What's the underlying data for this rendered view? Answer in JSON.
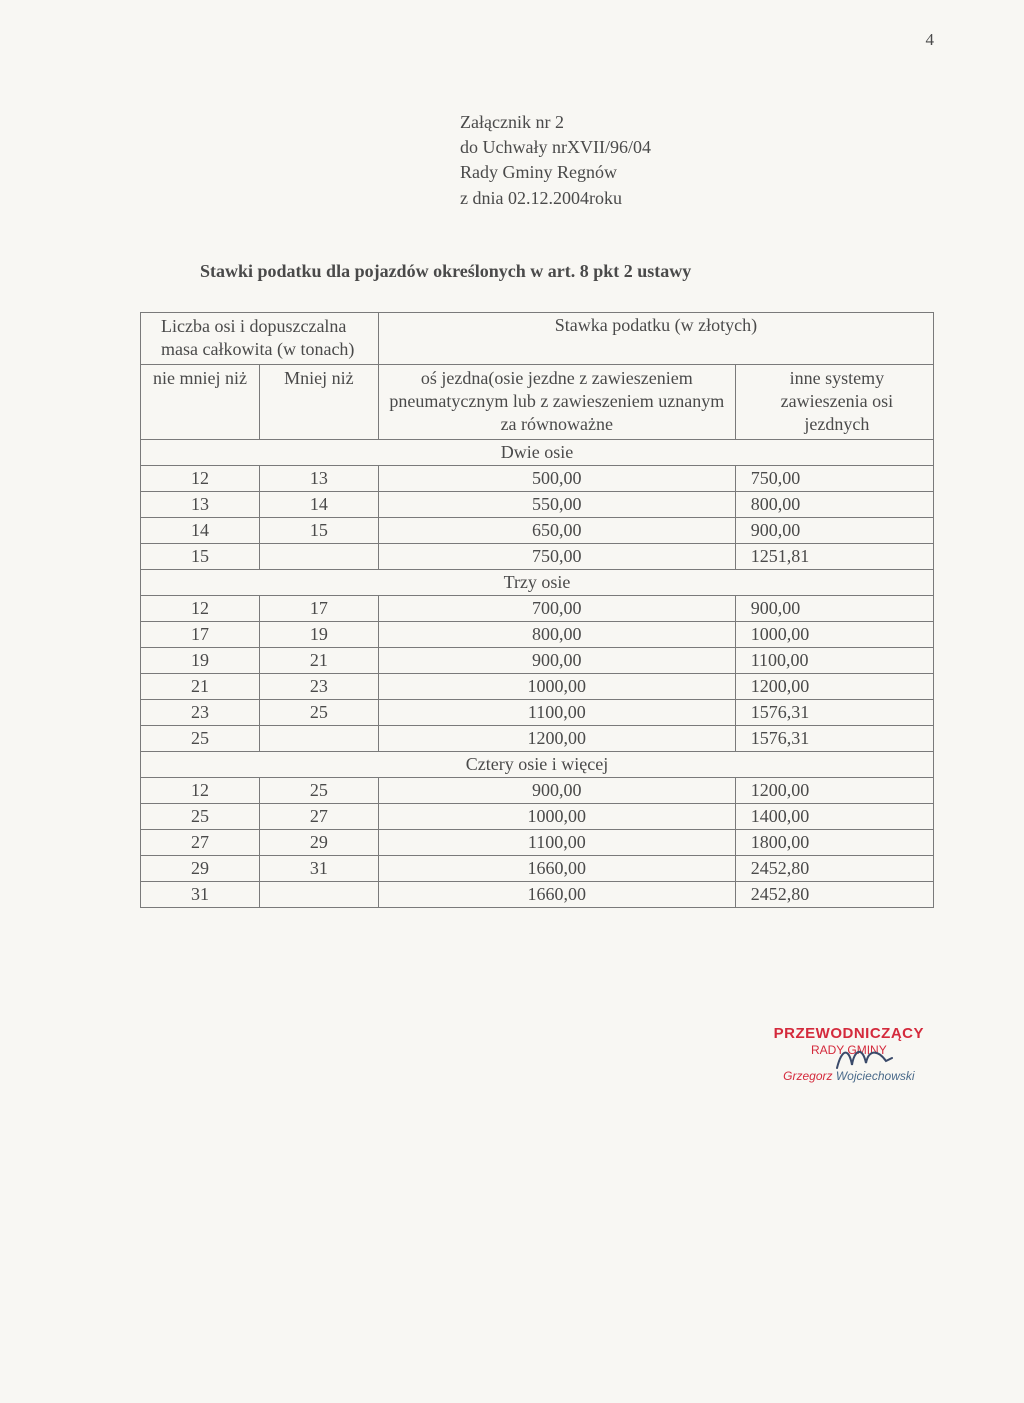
{
  "page_number": "4",
  "attachment": {
    "line1": "Załącznik  nr 2",
    "line2": "do Uchwały nrXVII/96/04",
    "line3": "Rady Gminy Regnów",
    "line4": "z dnia 02.12.2004roku"
  },
  "subtitle": "Stawki podatku dla pojazdów określonych w art. 8 pkt 2 ustawy",
  "table": {
    "header_left": "Liczba osi i\ndopuszczalna masa\ncałkowita  (w tonach)",
    "header_right": "Stawka podatku  (w złotych)",
    "sub_a": "nie mniej\nniż",
    "sub_b": "Mniej niż",
    "sub_c": "oś jezdna(osie jezdne z\nzawieszeniem pneumatycznym lub\nz zawieszeniem uznanym za\nrównoważne",
    "sub_d": "inne systemy\nzawieszenia\nosi jezdnych",
    "section1": "Dwie osie",
    "section2": "Trzy  osie",
    "section3": "Cztery  osie i więcej",
    "rows1": [
      [
        "12",
        "13",
        "500,00",
        "750,00"
      ],
      [
        "13",
        "14",
        "550,00",
        "800,00"
      ],
      [
        "14",
        "15",
        "650,00",
        "900,00"
      ],
      [
        "15",
        "",
        "750,00",
        "1251,81"
      ]
    ],
    "rows2": [
      [
        "12",
        "17",
        "700,00",
        "900,00"
      ],
      [
        "17",
        "19",
        "800,00",
        "1000,00"
      ],
      [
        "19",
        "21",
        "900,00",
        "1100,00"
      ],
      [
        "21",
        "23",
        "1000,00",
        "1200,00"
      ],
      [
        "23",
        "25",
        "1100,00",
        "1576,31"
      ],
      [
        "25",
        "",
        "1200,00",
        "1576,31"
      ]
    ],
    "rows3": [
      [
        "12",
        "25",
        "900,00",
        "1200,00"
      ],
      [
        "25",
        "27",
        "1000,00",
        "1400,00"
      ],
      [
        "27",
        "29",
        "1100,00",
        "1800,00"
      ],
      [
        "29",
        "31",
        "1660,00",
        "2452,80"
      ],
      [
        "31",
        "",
        "1660,00",
        "2452,80"
      ]
    ]
  },
  "signature": {
    "title": "PRZEWODNICZĄCY",
    "subtitle": "RADY GMINY",
    "name_prefix": "Grzegorz",
    "name_suffix": " Wojciechowski"
  },
  "style": {
    "background_color": "#f8f7f3",
    "border_color": "#7a7a7a",
    "text_color": "#4a4a4a",
    "stamp_red": "#d42a3c",
    "stamp_blue": "#4a6a8a",
    "font_size_body": 18,
    "font_size_page_num": 17,
    "font_size_sig_title": 15,
    "font_size_sig_sub": 12,
    "col_widths_pct": [
      15,
      15,
      45,
      25
    ]
  }
}
